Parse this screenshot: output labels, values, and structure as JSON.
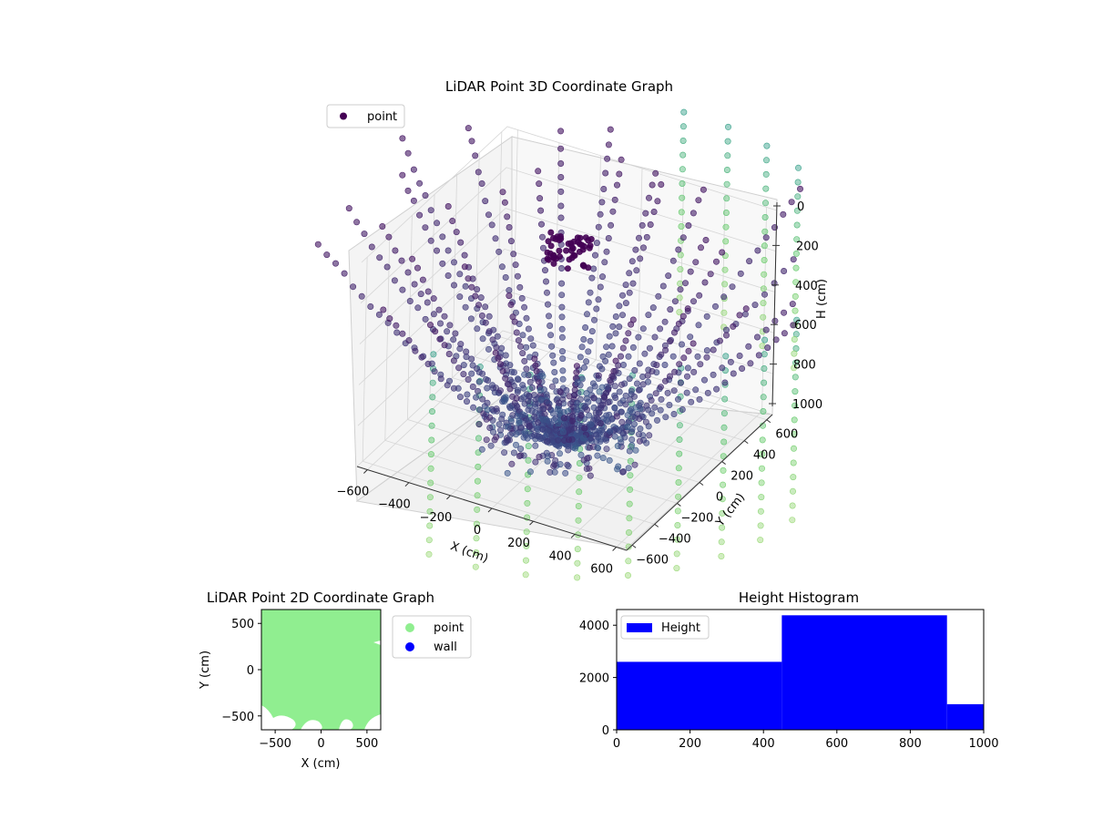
{
  "chart_data": [
    {
      "type": "scatter3d",
      "title": "LiDAR Point 3D Coordinate Graph",
      "xlabel": "X (cm)",
      "ylabel": "Y (cm)",
      "zlabel": "H (cm)",
      "xlim": [
        -650,
        650
      ],
      "ylim": [
        -650,
        650
      ],
      "zlim": [
        1000,
        0
      ],
      "x_ticks": [
        "−600",
        "−400",
        "−200",
        "0",
        "200",
        "400",
        "600"
      ],
      "y_ticks": [
        "−600",
        "−400",
        "−200",
        "0",
        "200",
        "400",
        "600"
      ],
      "z_ticks": [
        "0",
        "200",
        "400",
        "600",
        "800",
        "1000"
      ],
      "grid": true,
      "legend": {
        "position": "upper-left",
        "entries": [
          {
            "name": "point",
            "color": "#440154"
          }
        ]
      },
      "colormap": "viridis"
    },
    {
      "type": "scatter",
      "title": "LiDAR Point 2D Coordinate Graph",
      "xlabel": "X (cm)",
      "ylabel": "Y (cm)",
      "xlim": [
        -650,
        650
      ],
      "ylim": [
        -650,
        650
      ],
      "x_ticks": [
        "−500",
        "0",
        "500"
      ],
      "y_ticks": [
        "−500",
        "0",
        "500"
      ],
      "legend": {
        "position": "outside-right",
        "entries": [
          {
            "name": "point",
            "color": "#90ee90"
          },
          {
            "name": "wall",
            "color": "#0000ff"
          }
        ]
      }
    },
    {
      "type": "bar",
      "title": "Height Histogram",
      "bins": [
        [
          0,
          450
        ],
        [
          450,
          900
        ],
        [
          900,
          1000
        ]
      ],
      "values": [
        2600,
        4380,
        980
      ],
      "xlim": [
        0,
        1000
      ],
      "ylim": [
        0,
        4600
      ],
      "x_ticks": [
        "0",
        "200",
        "400",
        "600",
        "800",
        "1000"
      ],
      "y_ticks": [
        "0",
        "2000",
        "4000"
      ],
      "color": "#0000ff",
      "legend": {
        "position": "upper-left",
        "entries": [
          {
            "name": "Height",
            "color": "#0000ff"
          }
        ]
      }
    }
  ]
}
